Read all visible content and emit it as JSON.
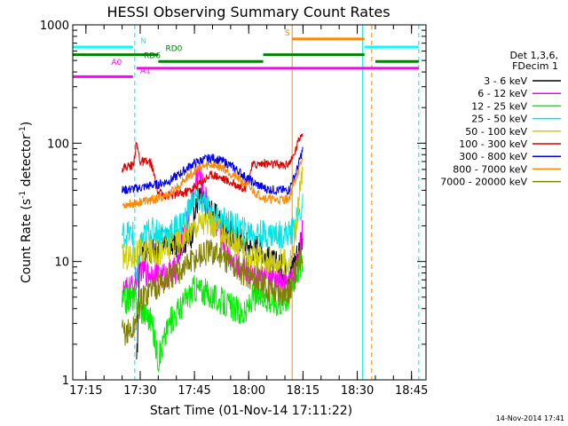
{
  "chart_data": {
    "type": "line",
    "title": "HESSI Observing Summary Count Rates",
    "xlabel": "Start Time (01-Nov-14 17:11:22)",
    "ylabel_main": "Count Rate (s",
    "ylabel_sup1": "-1",
    "ylabel_mid": " detector",
    "ylabel_sup2": "-1",
    "ylabel_end": ")",
    "yscale": "log",
    "ylim": [
      1,
      1000
    ],
    "xlim": [
      "17:11:22",
      "18:49:00"
    ],
    "x_ticks": [
      "17:15",
      "17:30",
      "17:45",
      "18:00",
      "18:15",
      "18:30",
      "18:45"
    ],
    "y_ticks": [
      {
        "value": 1,
        "label": "1"
      },
      {
        "value": 10,
        "label": "10"
      },
      {
        "value": 100,
        "label": "100"
      },
      {
        "value": 1000,
        "label": "1000"
      }
    ],
    "timestamp": "14-Nov-2014 17:41",
    "legend": {
      "header": [
        "Det 1,3,6,",
        "FDecim 1"
      ],
      "entries": [
        {
          "label": "3 - 6 keV",
          "color": "#000000"
        },
        {
          "label": "6 - 12 keV",
          "color": "#ff00ff"
        },
        {
          "label": "12 - 25 keV",
          "color": "#00ee00"
        },
        {
          "label": "25 - 50 keV",
          "color": "#00e5e5"
        },
        {
          "label": "50 - 100 keV",
          "color": "#cccc00"
        },
        {
          "label": "100 - 300 keV",
          "color": "#dd0000"
        },
        {
          "label": "300 - 800 keV",
          "color": "#0000ee"
        },
        {
          "label": "800 - 7000 keV",
          "color": "#ff8800"
        },
        {
          "label": "7000 - 20000 keV",
          "color": "#808000"
        }
      ]
    },
    "flags": [
      {
        "label": "N",
        "color": "#00ffff",
        "value": 650,
        "segments": [
          [
            "17:11:22",
            "17:28:00"
          ],
          [
            "18:32:00",
            "18:47:00"
          ]
        ],
        "label_at": "17:30:00"
      },
      {
        "label": "S",
        "color": "#ff8800",
        "value": 760,
        "segments": [
          [
            "18:12:00",
            "18:32:00"
          ]
        ],
        "label_at": "18:10:00"
      },
      {
        "label": "RD0",
        "color": "#008000",
        "value": 560,
        "segments": [
          [
            "17:11:22",
            "17:35:00"
          ],
          [
            "18:04:00",
            "18:32:00"
          ]
        ],
        "label_at": "17:37:00"
      },
      {
        "label": "RD6",
        "color": "#008000",
        "value": 490,
        "segments": [
          [
            "17:35:00",
            "18:04:00"
          ],
          [
            "18:35:00",
            "18:47:00"
          ]
        ],
        "label_at": "17:31:00"
      },
      {
        "label": "A0",
        "color": "#ff00ff",
        "value": 430,
        "segments": [
          [
            "17:29:00",
            "18:47:00"
          ]
        ],
        "label_at": "17:22:00"
      },
      {
        "label": "A1",
        "color": "#ff00ff",
        "value": 365,
        "segments": [
          [
            "17:11:22",
            "17:28:00"
          ]
        ],
        "label_at": "17:30:00"
      }
    ],
    "event_lines": [
      {
        "time": "17:28:30",
        "color": "#00e5e5",
        "style": "dashed"
      },
      {
        "time": "18:12:00",
        "color": "#ff8800",
        "style": "solid"
      },
      {
        "time": "18:31:30",
        "color": "#00e5e5",
        "style": "solid"
      },
      {
        "time": "18:34:00",
        "color": "#ff8800",
        "style": "dashed"
      },
      {
        "time": "18:47:00",
        "color": "#00e5e5",
        "style": "dashed"
      }
    ],
    "series": [
      {
        "name": "3 - 6 keV",
        "color": "#000000",
        "x": [
          "17:29:00",
          "17:30:00",
          "17:31:00",
          "17:35:00",
          "17:36:00",
          "17:40:00",
          "17:44:00",
          "17:46:00",
          "17:48:00",
          "17:50:00",
          "17:52:00",
          "17:55:00",
          "17:58:00",
          "18:01:00",
          "18:03:00",
          "18:04:00",
          "18:06:00",
          "18:09:00",
          "18:11:00",
          "18:12:30",
          "18:14:00",
          "18:15:00"
        ],
        "y": [
          1.2,
          14,
          13,
          12,
          15,
          14,
          16,
          35,
          30,
          25,
          22,
          17,
          15,
          13,
          14,
          12,
          10,
          9,
          8,
          10,
          13,
          18
        ]
      },
      {
        "name": "6 - 12 keV",
        "color": "#ff00ff",
        "x": [
          "17:25:00",
          "17:28:00",
          "17:30:00",
          "17:32:00",
          "17:35:00",
          "17:36:00",
          "17:40:00",
          "17:44:00",
          "17:46:00",
          "17:48:00",
          "17:50:00",
          "17:53:00",
          "17:56:00",
          "17:59:00",
          "18:01:00",
          "18:04:00",
          "18:07:00",
          "18:10:00",
          "18:12:00",
          "18:14:00",
          "18:15:00"
        ],
        "y": [
          5.5,
          6,
          9,
          8,
          8,
          7.5,
          8.5,
          30,
          60,
          35,
          22,
          15,
          10,
          8.5,
          8,
          7.5,
          7,
          6.5,
          7,
          12,
          20
        ]
      },
      {
        "name": "12 - 25 keV",
        "color": "#00ee00",
        "x": [
          "17:25:00",
          "17:28:00",
          "17:30:00",
          "17:33:00",
          "17:35:00",
          "17:38:00",
          "17:42:00",
          "17:45:00",
          "17:48:00",
          "17:50:00",
          "17:53:00",
          "17:56:00",
          "17:59:00",
          "18:01:00",
          "18:04:00",
          "18:08:00",
          "18:11:00",
          "18:13:00",
          "18:15:00"
        ],
        "y": [
          4.5,
          5,
          4,
          3.2,
          1.5,
          3,
          4.5,
          6,
          5.5,
          5,
          4.5,
          4,
          3.5,
          5,
          5,
          4.5,
          5,
          8,
          10
        ]
      },
      {
        "name": "25 - 50 keV",
        "color": "#00e5e5",
        "x": [
          "17:25:00",
          "17:28:00",
          "17:29:00",
          "17:30:00",
          "17:32:00",
          "17:35:00",
          "17:38:00",
          "17:42:00",
          "17:45:00",
          "17:48:00",
          "17:50:00",
          "17:53:00",
          "17:56:00",
          "17:59:00",
          "18:01:00",
          "18:04:00",
          "18:07:00",
          "18:10:00",
          "18:12:00",
          "18:14:00",
          "18:15:00"
        ],
        "y": [
          17,
          17,
          6,
          14,
          18,
          18,
          17,
          22,
          35,
          30,
          25,
          22,
          20,
          18,
          18,
          17,
          17,
          17,
          18,
          25,
          30
        ]
      },
      {
        "name": "50 - 100 keV",
        "color": "#cccc00",
        "x": [
          "17:25:00",
          "17:28:00",
          "17:30:00",
          "17:33:00",
          "17:35:00",
          "17:38:00",
          "17:42:00",
          "17:45:00",
          "17:47:00",
          "17:50:00",
          "17:53:00",
          "17:56:00",
          "17:59:00",
          "18:01:00",
          "18:04:00",
          "18:07:00",
          "18:10:00",
          "18:12:00",
          "18:14:00",
          "18:15:00"
        ],
        "y": [
          11,
          11,
          12,
          12,
          12,
          13,
          16,
          20,
          22,
          20,
          17,
          14,
          12,
          11,
          10.5,
          10,
          10,
          10.5,
          35,
          60
        ]
      },
      {
        "name": "100 - 300 keV",
        "color": "#dd0000",
        "x": [
          "17:25:00",
          "17:28:00",
          "17:29:00",
          "17:30:00",
          "17:33:00",
          "17:35:00",
          "17:38:00",
          "17:42:00",
          "17:45:00",
          "17:48:00",
          "17:50:00",
          "17:53:00",
          "17:56:00",
          "17:59:00",
          "18:01:00",
          "18:04:00",
          "18:07:00",
          "18:10:00",
          "18:12:00",
          "18:14:00",
          "18:15:00"
        ],
        "y": [
          62,
          65,
          100,
          70,
          68,
          38,
          36,
          38,
          42,
          50,
          55,
          50,
          45,
          42,
          65,
          68,
          66,
          65,
          72,
          110,
          130
        ]
      },
      {
        "name": "300 - 800 keV",
        "color": "#0000ee",
        "x": [
          "17:25:00",
          "17:28:00",
          "17:30:00",
          "17:33:00",
          "17:35:00",
          "17:38:00",
          "17:41:00",
          "17:44:00",
          "17:47:00",
          "17:50:00",
          "17:53:00",
          "17:56:00",
          "17:59:00",
          "18:02:00",
          "18:05:00",
          "18:08:00",
          "18:11:00",
          "18:13:00",
          "18:15:00"
        ],
        "y": [
          40,
          41,
          42,
          44,
          45,
          48,
          55,
          65,
          72,
          75,
          70,
          62,
          52,
          45,
          41,
          40,
          40,
          55,
          90
        ]
      },
      {
        "name": "800 - 7000 keV",
        "color": "#ff8800",
        "x": [
          "17:25:00",
          "17:28:00",
          "17:30:00",
          "17:33:00",
          "17:35:00",
          "17:38:00",
          "17:41:00",
          "17:44:00",
          "17:47:00",
          "17:50:00",
          "17:53:00",
          "17:56:00",
          "17:59:00",
          "18:02:00",
          "18:05:00",
          "18:08:00",
          "18:11:00",
          "18:13:00",
          "18:15:00"
        ],
        "y": [
          30,
          31,
          32,
          33,
          34,
          37,
          45,
          55,
          63,
          66,
          62,
          53,
          45,
          38,
          34,
          33,
          34,
          50,
          75
        ]
      },
      {
        "name": "7000 - 20000 keV",
        "color": "#808000",
        "x": [
          "17:25:00",
          "17:28:00",
          "17:30:00",
          "17:33:00",
          "17:36:00",
          "17:40:00",
          "17:44:00",
          "17:47:00",
          "17:50:00",
          "17:53:00",
          "17:56:00",
          "17:59:00",
          "18:02:00",
          "18:05:00",
          "18:08:00",
          "18:11:00",
          "18:13:00",
          "18:15:00"
        ],
        "y": [
          2.5,
          2.6,
          4.5,
          6,
          6.5,
          8,
          10,
          11.5,
          12,
          11,
          9,
          8,
          7,
          6,
          5.5,
          5.5,
          8,
          13
        ]
      }
    ]
  }
}
